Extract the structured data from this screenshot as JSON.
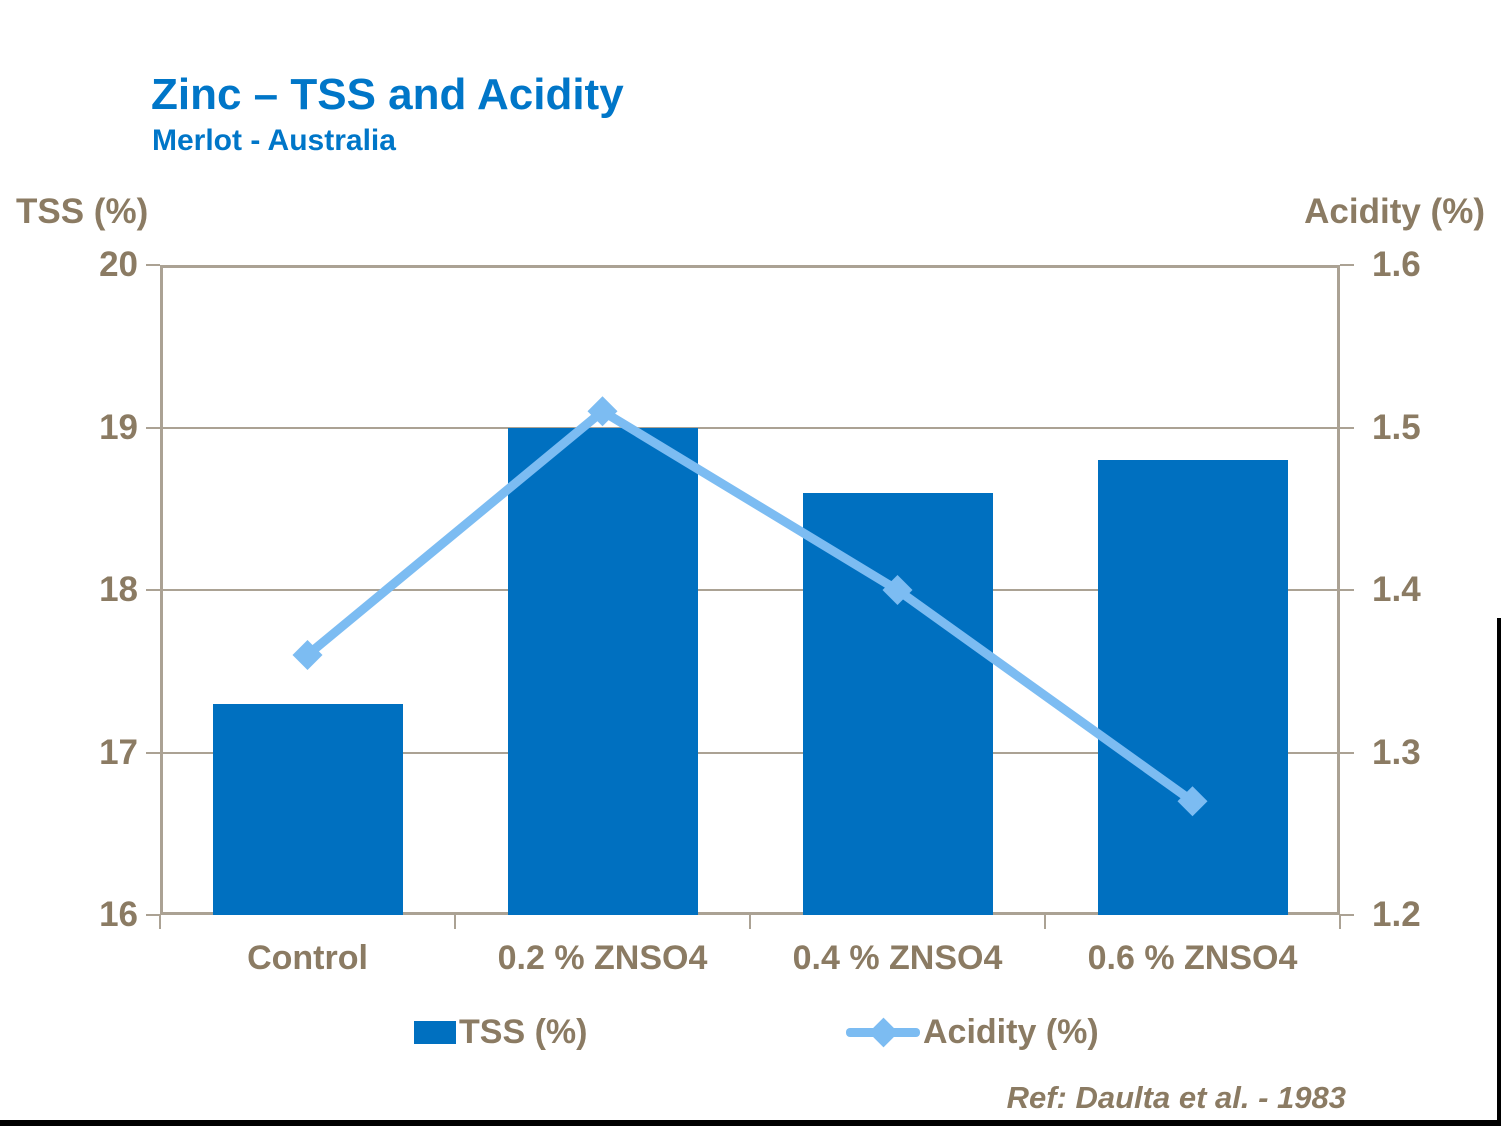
{
  "header": {
    "title": "Zinc – TSS and Acidity",
    "subtitle": "Merlot - Australia"
  },
  "footer": {
    "ref": "Ref: Daulta et al. - 1983"
  },
  "colors": {
    "title": "#0076C8",
    "bar": "#0070C0",
    "line": "#7CBCF2",
    "axis_text": "#8B7B63",
    "frame": "#ABA294"
  },
  "legend": {
    "items": [
      {
        "label": "TSS (%)",
        "type": "bar"
      },
      {
        "label": "Acidity (%)",
        "type": "line"
      }
    ],
    "position": "bottom"
  },
  "chart_data": {
    "type": "bar",
    "title": "Zinc – TSS and Acidity",
    "subtitle": "Merlot - Australia",
    "categories": [
      "Control",
      "0.2 % ZNSO4",
      "0.4 % ZNSO4",
      "0.6 % ZNSO4"
    ],
    "series": [
      {
        "name": "TSS (%)",
        "type": "bar",
        "axis": "left",
        "values": [
          17.3,
          19.0,
          18.6,
          18.8
        ]
      },
      {
        "name": "Acidity (%)",
        "type": "line",
        "axis": "right",
        "values": [
          1.36,
          1.51,
          1.4,
          1.27
        ]
      }
    ],
    "left_axis": {
      "label": "TSS (%)",
      "min": 16,
      "max": 20,
      "ticks": [
        20,
        19,
        18,
        17,
        16
      ]
    },
    "right_axis": {
      "label": "Acidity (%)",
      "min": 1.2,
      "max": 1.6,
      "ticks": [
        1.6,
        1.5,
        1.4,
        1.3,
        1.2
      ]
    },
    "grid": true,
    "legend_position": "bottom",
    "annotations": [
      "Ref: Daulta et al. - 1983"
    ]
  }
}
